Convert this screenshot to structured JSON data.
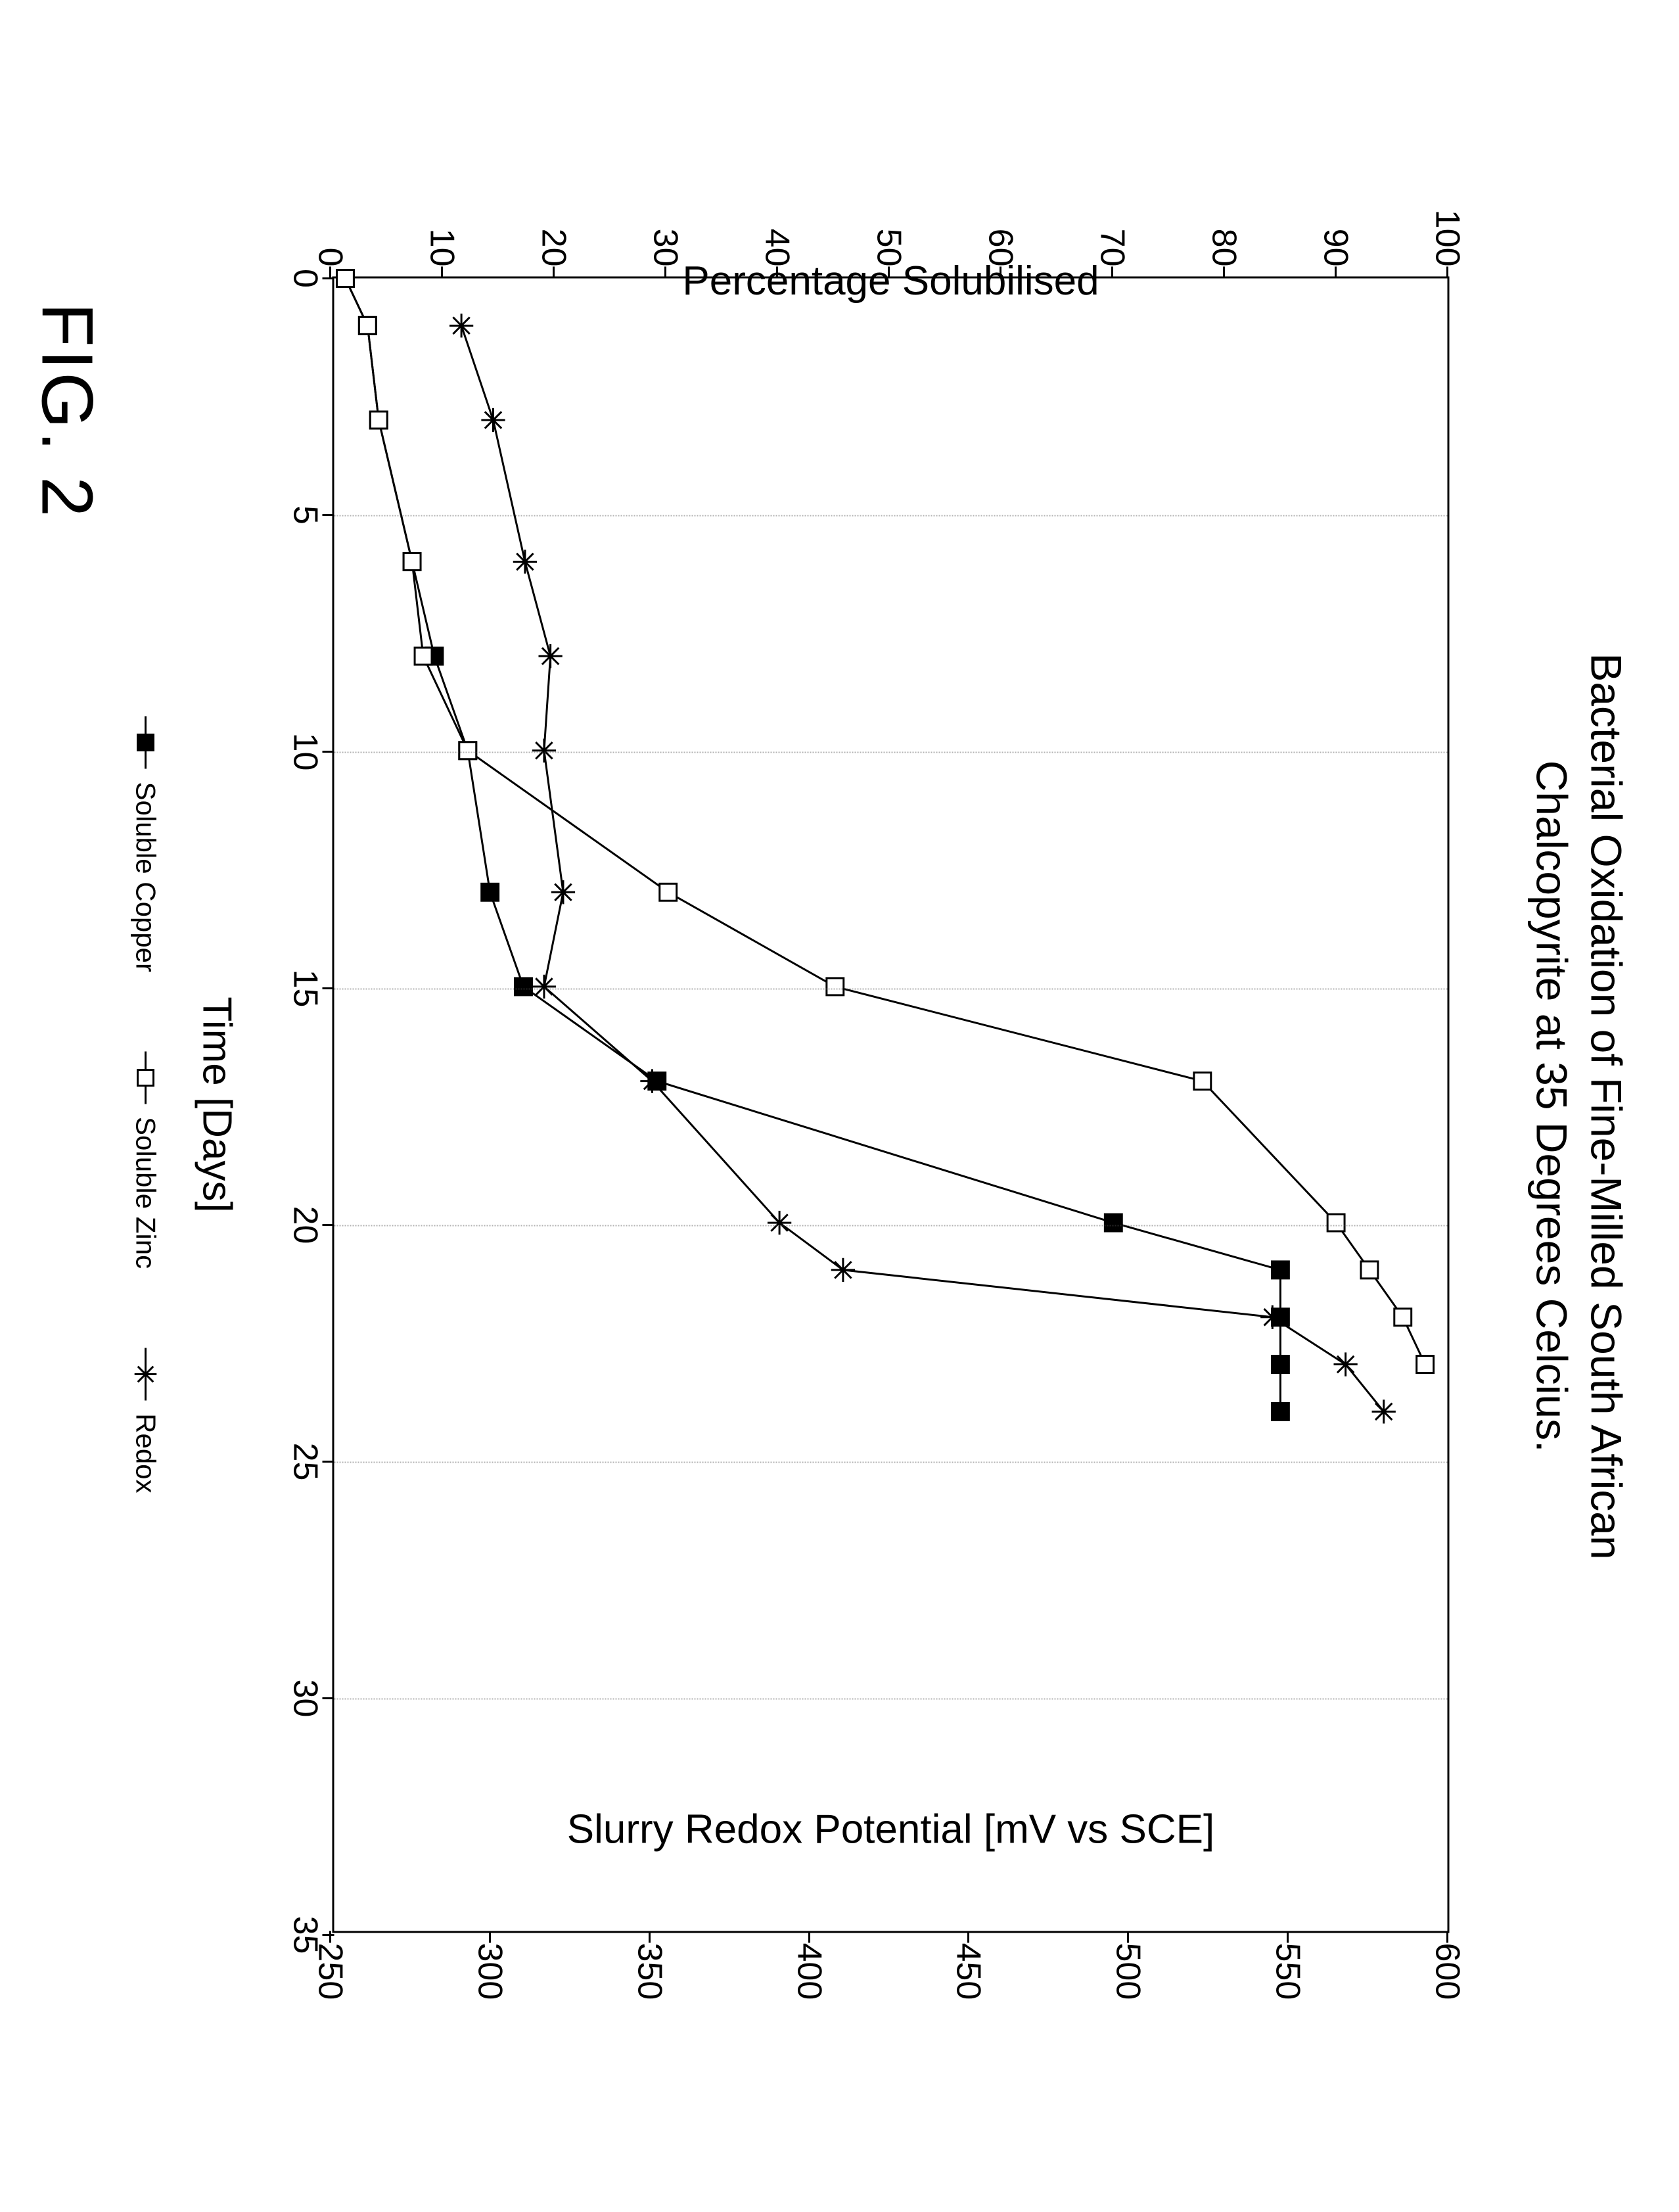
{
  "figure_caption": "FIG. 2",
  "chart": {
    "type": "line",
    "title_line1": "Bacterial Oxidation of Fine-Milled South African",
    "title_line2": "Chalcopyrite at 35 Degrees Celcius.",
    "title_fontsize": 66,
    "x_axis": {
      "label": "Time [Days]",
      "min": 0,
      "max": 35,
      "tick_step": 5,
      "ticks": [
        0,
        5,
        10,
        15,
        20,
        25,
        30,
        35
      ],
      "label_fontsize": 62,
      "tick_fontsize": 52
    },
    "y_axis_left": {
      "label": "Percentage Solubilised",
      "min": 0,
      "max": 100,
      "tick_step": 10,
      "ticks": [
        0,
        10,
        20,
        30,
        40,
        50,
        60,
        70,
        80,
        90,
        100
      ],
      "label_fontsize": 62,
      "tick_fontsize": 52
    },
    "y_axis_right": {
      "label": "Slurry Redox Potential [mV vs SCE]",
      "min": 250,
      "max": 600,
      "tick_step": 50,
      "ticks": [
        250,
        300,
        350,
        400,
        450,
        500,
        550,
        600
      ],
      "label_fontsize": 62,
      "tick_fontsize": 52
    },
    "grid": {
      "vertical_at": [
        5,
        10,
        15,
        20,
        25,
        30
      ],
      "style": "dotted",
      "color": "#555555"
    },
    "line_color": "#000000",
    "line_width": 3,
    "background_color": "#ffffff",
    "series": [
      {
        "name": "Soluble Copper",
        "axis": "left",
        "marker": "filled-square",
        "marker_size": 26,
        "marker_fill": "#000000",
        "marker_stroke": "#000000",
        "data": [
          {
            "x": 0,
            "y": 1
          },
          {
            "x": 1,
            "y": 3
          },
          {
            "x": 3,
            "y": 4
          },
          {
            "x": 6,
            "y": 7
          },
          {
            "x": 8,
            "y": 9
          },
          {
            "x": 10,
            "y": 12
          },
          {
            "x": 13,
            "y": 14
          },
          {
            "x": 15,
            "y": 17
          },
          {
            "x": 17,
            "y": 29
          },
          {
            "x": 20,
            "y": 70
          },
          {
            "x": 21,
            "y": 85
          },
          {
            "x": 22,
            "y": 85
          },
          {
            "x": 23,
            "y": 85
          },
          {
            "x": 24,
            "y": 85
          }
        ]
      },
      {
        "name": "Soluble Zinc",
        "axis": "left",
        "marker": "open-square",
        "marker_size": 26,
        "marker_fill": "#ffffff",
        "marker_stroke": "#000000",
        "data": [
          {
            "x": 0,
            "y": 1
          },
          {
            "x": 1,
            "y": 3
          },
          {
            "x": 3,
            "y": 4
          },
          {
            "x": 6,
            "y": 7
          },
          {
            "x": 8,
            "y": 8
          },
          {
            "x": 10,
            "y": 12
          },
          {
            "x": 13,
            "y": 30
          },
          {
            "x": 15,
            "y": 45
          },
          {
            "x": 17,
            "y": 78
          },
          {
            "x": 20,
            "y": 90
          },
          {
            "x": 21,
            "y": 93
          },
          {
            "x": 22,
            "y": 96
          },
          {
            "x": 23,
            "y": 98
          }
        ]
      },
      {
        "name": "Redox",
        "axis": "right",
        "marker": "asterisk",
        "marker_size": 26,
        "marker_fill": "#000000",
        "marker_stroke": "#000000",
        "data": [
          {
            "x": 1,
            "y": 290
          },
          {
            "x": 3,
            "y": 300
          },
          {
            "x": 6,
            "y": 310
          },
          {
            "x": 8,
            "y": 318
          },
          {
            "x": 10,
            "y": 316
          },
          {
            "x": 13,
            "y": 322
          },
          {
            "x": 15,
            "y": 316
          },
          {
            "x": 17,
            "y": 350
          },
          {
            "x": 20,
            "y": 390
          },
          {
            "x": 21,
            "y": 410
          },
          {
            "x": 22,
            "y": 545
          },
          {
            "x": 23,
            "y": 568
          },
          {
            "x": 24,
            "y": 580
          }
        ]
      }
    ],
    "legend": {
      "position": "bottom",
      "fontsize": 42,
      "items": [
        {
          "label": "Soluble Copper",
          "marker": "filled-square"
        },
        {
          "label": "Soluble Zinc",
          "marker": "open-square"
        },
        {
          "label": "Redox",
          "marker": "asterisk"
        }
      ]
    }
  }
}
